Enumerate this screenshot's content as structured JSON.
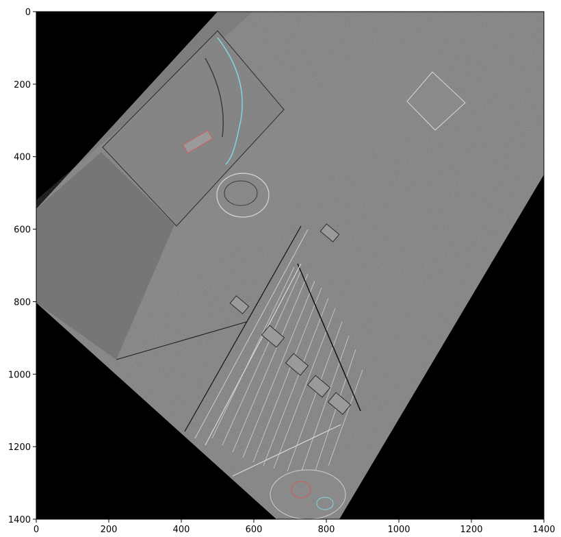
{
  "image_view": {
    "x_axis": {
      "min": 0,
      "max": 1400,
      "ticks": [
        0,
        200,
        400,
        600,
        800,
        1000,
        1200,
        1400
      ]
    },
    "y_axis": {
      "min": 0,
      "max": 1400,
      "inverted": true,
      "ticks": [
        0,
        200,
        400,
        600,
        800,
        1000,
        1200,
        1400
      ]
    },
    "colors": {
      "background": "#000000",
      "gray_fill": "#808080",
      "edge_light": "#d8d8d8",
      "edge_dark": "#2b2b2b",
      "accent_cyan": "#7fd6e6",
      "accent_red": "#d25a5a"
    },
    "description_shape": "rotated square (diamond) edge-filtered aerial image on black background"
  }
}
